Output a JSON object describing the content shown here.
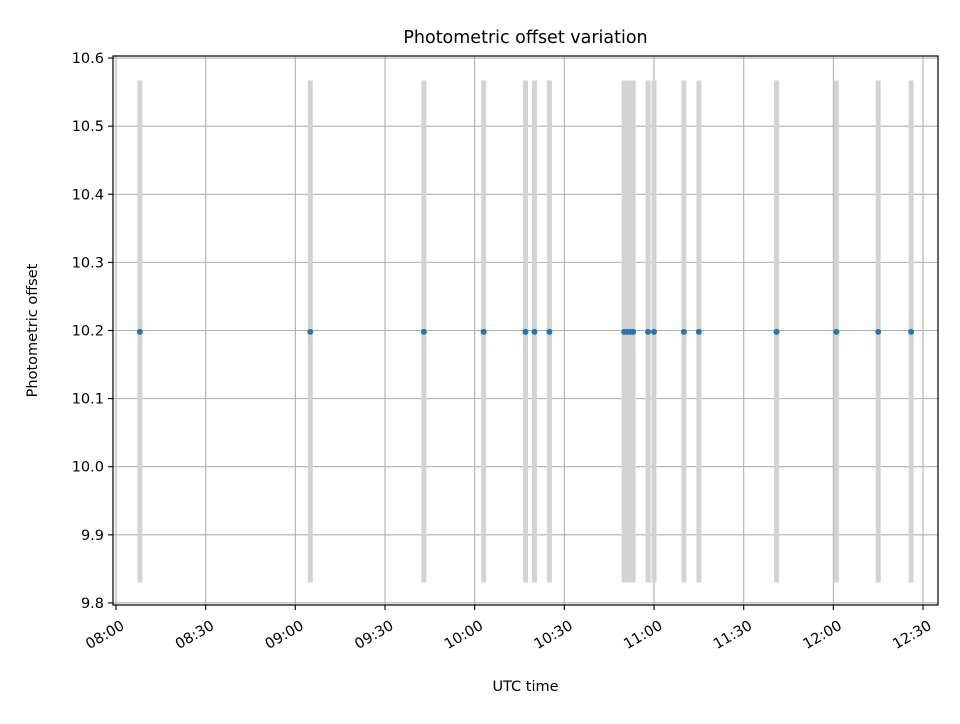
{
  "chart_data": {
    "type": "scatter",
    "title": "Photometric offset variation",
    "xlabel": "UTC time",
    "ylabel": "Photometric offset",
    "xlim": [
      "07:59",
      "12:35"
    ],
    "ylim": [
      9.797,
      10.603
    ],
    "grid": true,
    "x_ticks": [
      "08:00",
      "08:30",
      "09:00",
      "09:30",
      "10:00",
      "10:30",
      "11:00",
      "11:30",
      "12:00",
      "12:30"
    ],
    "y_ticks": [
      9.8,
      9.9,
      10.0,
      10.1,
      10.2,
      10.3,
      10.4,
      10.5,
      10.6
    ],
    "y_tick_labels": [
      "9.8",
      "9.9",
      "10.0",
      "10.1",
      "10.2",
      "10.3",
      "10.4",
      "10.5",
      "10.6"
    ],
    "error_bar": {
      "low": 9.83,
      "high": 10.567
    },
    "colors": {
      "points": "#1f77b4",
      "error_bars": "#d3d3d3",
      "grid": "#b0b0b0"
    },
    "points": [
      {
        "x": "08:08",
        "y": 10.198
      },
      {
        "x": "09:05",
        "y": 10.198
      },
      {
        "x": "09:43",
        "y": 10.198
      },
      {
        "x": "10:03",
        "y": 10.198
      },
      {
        "x": "10:17",
        "y": 10.198
      },
      {
        "x": "10:20",
        "y": 10.198
      },
      {
        "x": "10:25",
        "y": 10.198
      },
      {
        "x": "10:50",
        "y": 10.198
      },
      {
        "x": "10:51",
        "y": 10.198
      },
      {
        "x": "10:52",
        "y": 10.198
      },
      {
        "x": "10:53",
        "y": 10.198
      },
      {
        "x": "10:58",
        "y": 10.198
      },
      {
        "x": "11:00",
        "y": 10.198
      },
      {
        "x": "11:10",
        "y": 10.198
      },
      {
        "x": "11:15",
        "y": 10.198
      },
      {
        "x": "11:41",
        "y": 10.198
      },
      {
        "x": "12:01",
        "y": 10.198
      },
      {
        "x": "12:15",
        "y": 10.198
      },
      {
        "x": "12:26",
        "y": 10.198
      }
    ]
  }
}
